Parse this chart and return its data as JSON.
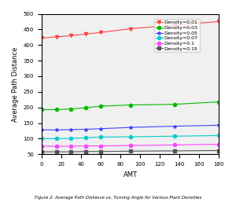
{
  "x": [
    0,
    15,
    30,
    45,
    60,
    90,
    135,
    180
  ],
  "series": [
    {
      "label": "Density=0.01",
      "color": "#ff4444",
      "marker": "v",
      "y": [
        422,
        426,
        430,
        435,
        440,
        452,
        464,
        475
      ]
    },
    {
      "label": "Density=0.03",
      "color": "#00bb00",
      "marker": "o",
      "y": [
        193,
        193,
        195,
        199,
        204,
        208,
        210,
        218
      ]
    },
    {
      "label": "Density=0.05",
      "color": "#4444ff",
      "marker": "*",
      "y": [
        128,
        128,
        129,
        130,
        132,
        136,
        140,
        143
      ]
    },
    {
      "label": "Density=0.07",
      "color": "#00cccc",
      "marker": "o",
      "y": [
        100,
        100,
        101,
        103,
        105,
        106,
        108,
        110
      ]
    },
    {
      "label": "Density=0.1",
      "color": "#ff44ff",
      "marker": "o",
      "y": [
        76,
        76,
        76,
        77,
        77,
        78,
        80,
        82
      ]
    },
    {
      "label": "Density=0.15",
      "color": "#555555",
      "marker": "s",
      "y": [
        58,
        58,
        58,
        59,
        59,
        60,
        61,
        62
      ]
    }
  ],
  "xlabel": "AMT",
  "ylabel": "Average Path Distance",
  "ylim": [
    50,
    500
  ],
  "xlim": [
    0,
    180
  ],
  "yticks": [
    50,
    100,
    150,
    200,
    250,
    300,
    350,
    400,
    450,
    500
  ],
  "xticks": [
    0,
    20,
    40,
    60,
    80,
    100,
    120,
    140,
    160,
    180
  ],
  "caption": "Figure 2: Average Path Distance vs. Turning Angle for Various Plant Densities",
  "background_color": "#f0f0f0"
}
